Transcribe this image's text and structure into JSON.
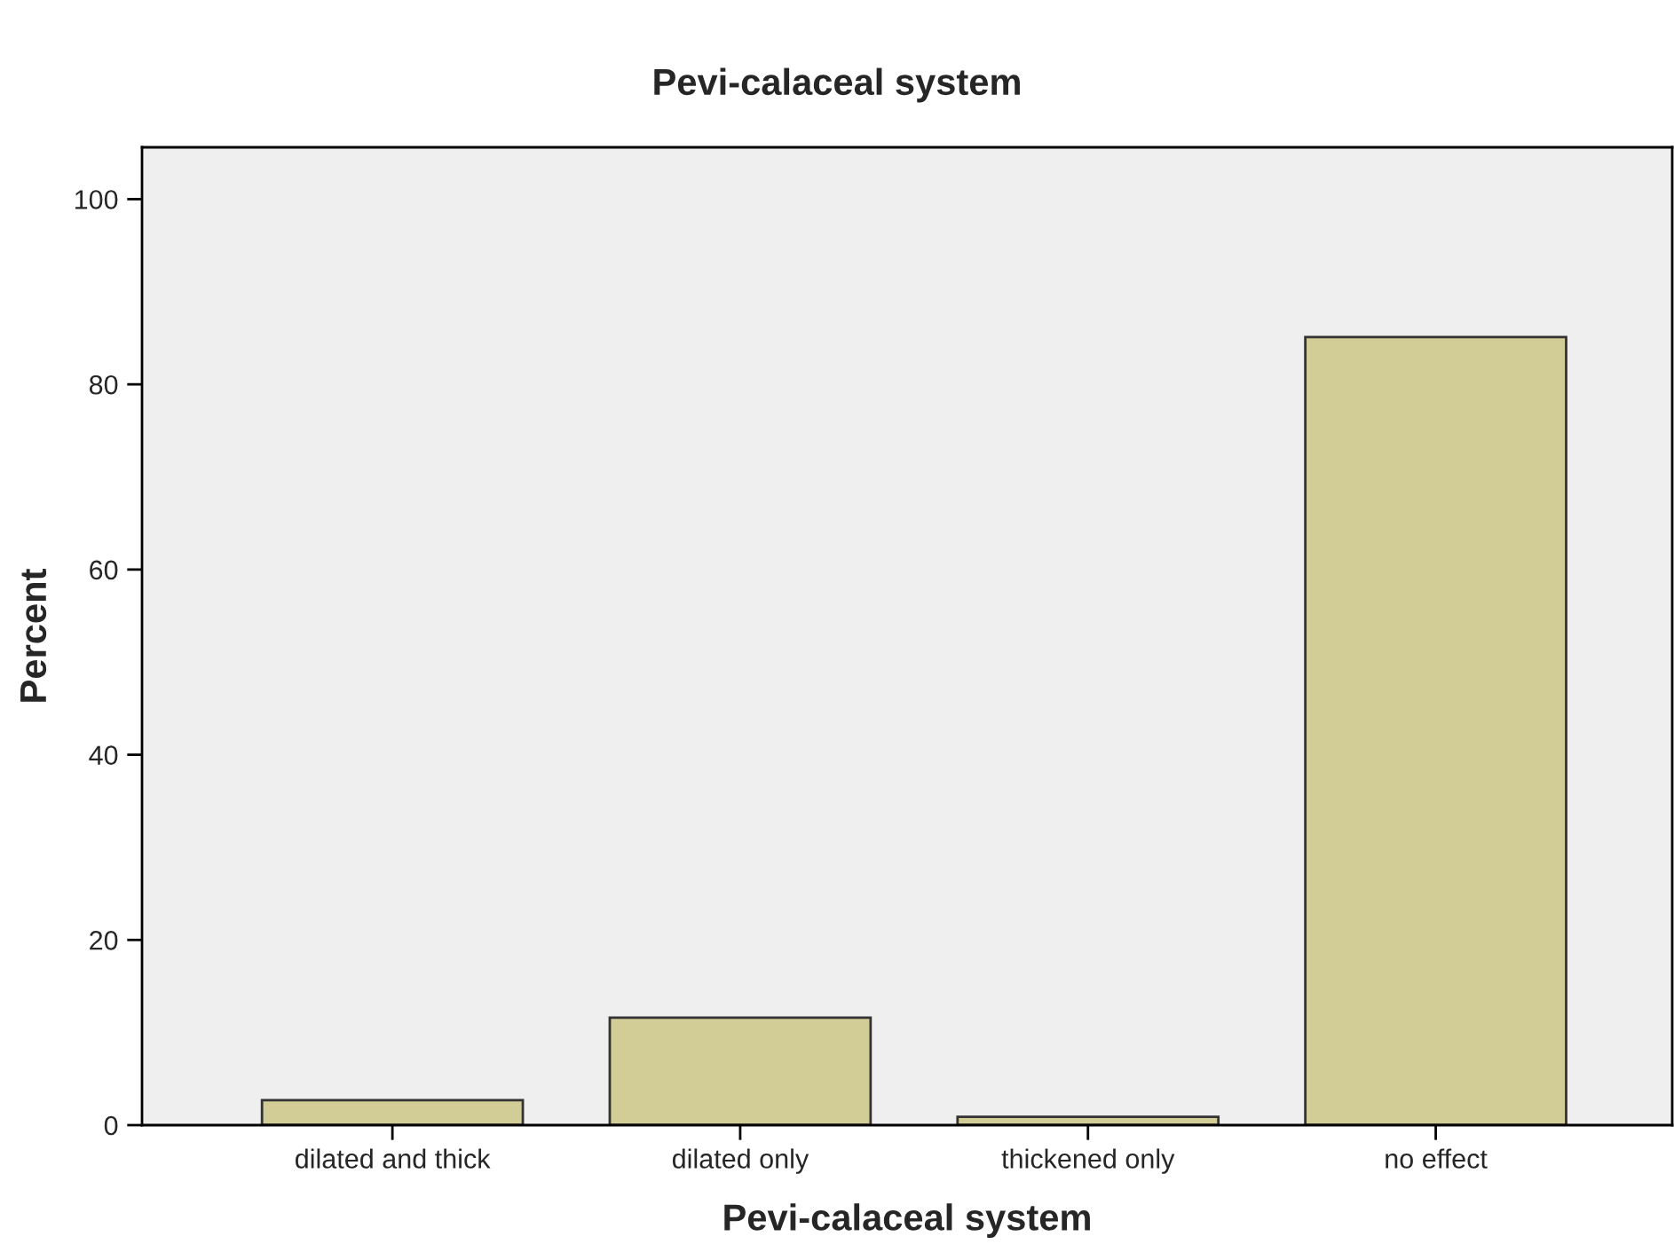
{
  "chart_data": {
    "type": "bar",
    "title": "Pevi-calaceal system",
    "xlabel": "Pevi-calaceal system",
    "ylabel": "Percent",
    "categories": [
      "dilated and thick",
      "dilated only",
      "thickened only",
      "no effect"
    ],
    "values": [
      2.7,
      11.6,
      0.9,
      85.1
    ],
    "color": "#d2cd96",
    "ylim": [
      0,
      105.6
    ],
    "yticks": [
      0,
      20,
      40,
      60,
      80,
      100
    ],
    "grid": false
  }
}
